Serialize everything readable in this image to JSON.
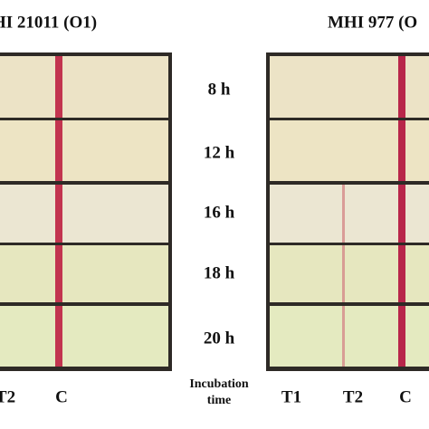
{
  "panels": [
    {
      "title": "HI 21011 (O1)",
      "lane_labels": [
        "T2",
        "C"
      ]
    },
    {
      "title": "MHI 977 (O",
      "lane_labels": [
        "T1",
        "T2",
        "C"
      ]
    }
  ],
  "times": [
    "8 h",
    "12 h",
    "16 h",
    "18 h",
    "20 h"
  ],
  "time_axis_label": [
    "Incubation",
    "time"
  ]
}
